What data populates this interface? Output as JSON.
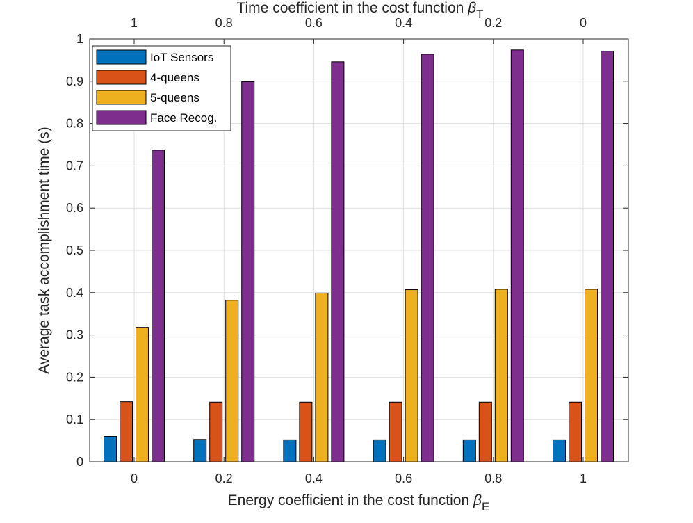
{
  "chart_data": {
    "type": "bar",
    "categories": [
      "0",
      "0.2",
      "0.4",
      "0.6",
      "0.8",
      "1"
    ],
    "top_categories": [
      "1",
      "0.8",
      "0.6",
      "0.4",
      "0.2",
      "0"
    ],
    "series": [
      {
        "name": "IoT Sensors",
        "color": "#0072BD",
        "values": [
          0.06,
          0.053,
          0.052,
          0.052,
          0.052,
          0.052
        ]
      },
      {
        "name": "4-queens",
        "color": "#D95319",
        "values": [
          0.142,
          0.141,
          0.141,
          0.141,
          0.141,
          0.141
        ]
      },
      {
        "name": "5-queens",
        "color": "#EDB120",
        "values": [
          0.318,
          0.382,
          0.399,
          0.407,
          0.408,
          0.408
        ]
      },
      {
        "name": "Face Recog.",
        "color": "#7E2F8E",
        "values": [
          0.737,
          0.899,
          0.946,
          0.964,
          0.974,
          0.971
        ]
      }
    ],
    "ylim": [
      0,
      1
    ],
    "yticks": [
      "0",
      "0.1",
      "0.2",
      "0.3",
      "0.4",
      "0.5",
      "0.6",
      "0.7",
      "0.8",
      "0.9",
      "1"
    ],
    "xlabel": {
      "text": "Energy coefficient in the cost function ",
      "symbol": "β",
      "subscript": "E"
    },
    "top_xlabel": {
      "text": "Time coefficient in the cost function ",
      "symbol": "β",
      "subscript": "T"
    },
    "ylabel": "Average task accomplishment time (s)",
    "grid": true,
    "legend_position": "top-left"
  }
}
